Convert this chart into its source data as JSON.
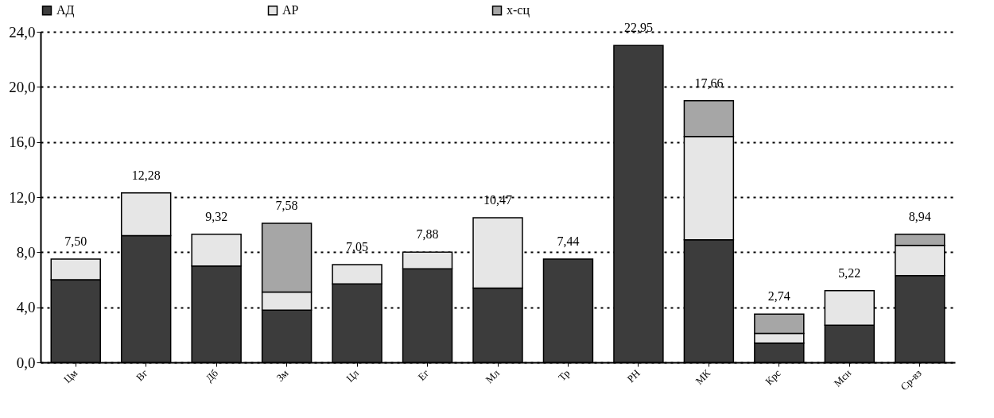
{
  "chart_data": {
    "type": "bar",
    "stacked": true,
    "categories": [
      "Цм",
      "Вг",
      "Дб",
      "Зм",
      "Цл",
      "Ег",
      "Мл",
      "Тр",
      "РН",
      "МК",
      "Крс",
      "Мсн",
      "Ср-вз"
    ],
    "series": [
      {
        "name": "АД",
        "color": "#3c3c3c",
        "values": [
          6.0,
          9.2,
          7.0,
          3.8,
          5.7,
          6.8,
          5.4,
          7.5,
          23.0,
          8.9,
          1.4,
          2.7,
          6.3
        ]
      },
      {
        "name": "АР",
        "color": "#e6e6e6",
        "values": [
          1.5,
          3.1,
          2.3,
          1.3,
          1.4,
          1.2,
          5.1,
          null,
          null,
          7.5,
          0.7,
          2.5,
          2.2
        ]
      },
      {
        "name": "х-сц",
        "color": "#a6a6a6",
        "values": [
          null,
          null,
          null,
          5.0,
          null,
          null,
          null,
          null,
          null,
          2.6,
          1.4,
          null,
          0.8
        ]
      }
    ],
    "annotations": [
      {
        "text": "7,50",
        "x": "Цм",
        "y": 7.5
      },
      {
        "text": "12,28",
        "x": "Вг",
        "y": 12.3
      },
      {
        "text": "9,32",
        "x": "Дб",
        "y": 9.3
      },
      {
        "text": "7,58",
        "x": "Зм",
        "y": 10.1
      },
      {
        "text": "7,05",
        "x": "Цл",
        "y": 7.1
      },
      {
        "text": "7,88",
        "x": "Ег",
        "y": 8.0
      },
      {
        "text": "10,47",
        "x": "Мл",
        "y": 10.5
      },
      {
        "text": "7,44",
        "x": "Тр",
        "y": 7.5
      },
      {
        "text": "22,95",
        "x": "РН",
        "y": 23.0
      },
      {
        "text": "17,66",
        "x": "МК",
        "y": 19.0
      },
      {
        "text": "2,74",
        "x": "Крс",
        "y": 3.5
      },
      {
        "text": "5,22",
        "x": "Мсн",
        "y": 5.2
      },
      {
        "text": "8,94",
        "x": "Ср-вз",
        "y": 9.3
      }
    ],
    "ylim": [
      0,
      24
    ],
    "yticks": [
      {
        "value": 0,
        "label": "0,0"
      },
      {
        "value": 4,
        "label": "4,0"
      },
      {
        "value": 8,
        "label": "8,0"
      },
      {
        "value": 12,
        "label": "12,0"
      },
      {
        "value": 16,
        "label": "16,0"
      },
      {
        "value": 20,
        "label": "20,0"
      },
      {
        "value": 24,
        "label": "24,0"
      }
    ],
    "grid": "y",
    "legend": "top"
  }
}
